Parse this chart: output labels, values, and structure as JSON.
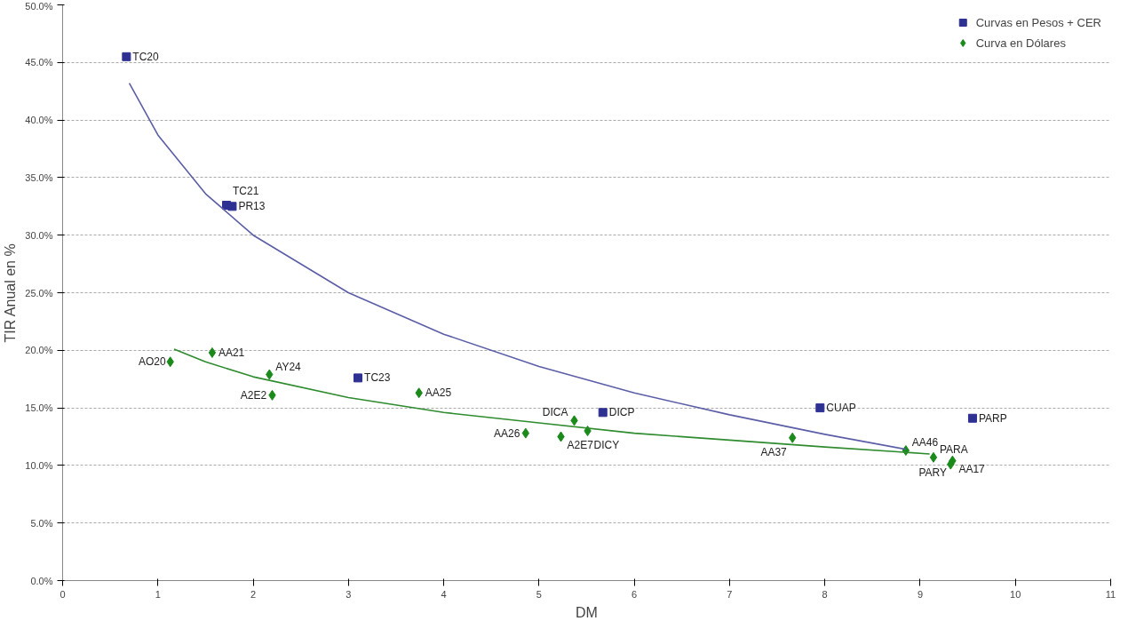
{
  "chart_data": {
    "type": "scatter",
    "xlabel": "DM",
    "ylabel": "TIR Anual en %",
    "xlim": [
      0,
      11
    ],
    "xticks": [
      0,
      1,
      2,
      3,
      4,
      5,
      6,
      7,
      8,
      9,
      10,
      11
    ],
    "ylim": [
      0,
      50
    ],
    "yticks": [
      {
        "value": 0,
        "label": "0.0%"
      },
      {
        "value": 5,
        "label": "5.0%"
      },
      {
        "value": 10,
        "label": "10.0%"
      },
      {
        "value": 15,
        "label": "15.0%"
      },
      {
        "value": 20,
        "label": "20.0%"
      },
      {
        "value": 25,
        "label": "25.0%"
      },
      {
        "value": 30,
        "label": "30.0%"
      },
      {
        "value": 35,
        "label": "35.0%"
      },
      {
        "value": 40,
        "label": "40.0%"
      },
      {
        "value": 45,
        "label": "45.0%"
      },
      {
        "value": 50,
        "label": "50.0%"
      }
    ],
    "grid": "y",
    "legend": "top right",
    "series": [
      {
        "name": "Curvas en Pesos + CER",
        "color": "#2e3192",
        "marker": "square",
        "x": [
          0.67,
          1.72,
          1.78,
          3.1,
          5.67,
          7.95,
          9.55
        ],
        "values": [
          45.5,
          32.6,
          32.5,
          17.6,
          14.6,
          15.0,
          14.1
        ],
        "value_labels": [
          "TC20",
          "TC21",
          "PR13",
          "TC23",
          "DICP",
          "CUAP",
          "PARP"
        ]
      },
      {
        "name": "Curva en Dólares",
        "color": "#1a8a1a",
        "marker": "diamond",
        "x": [
          1.13,
          1.57,
          2.17,
          2.2,
          3.74,
          4.86,
          5.23,
          5.37,
          5.51,
          7.66,
          8.85,
          9.14,
          9.34,
          9.32
        ],
        "values": [
          19.0,
          19.8,
          17.9,
          16.1,
          16.3,
          12.8,
          12.5,
          13.9,
          13.0,
          12.4,
          11.3,
          10.7,
          10.4,
          10.1
        ],
        "value_labels": [
          "AO20",
          "AA21",
          "AY24",
          "A2E2",
          "AA25",
          "AA26",
          "A2E7",
          "DICA",
          "DICY",
          "AA37",
          "AA46",
          "PARA",
          "AA17",
          "PARY"
        ]
      },
      {
        "type": "line",
        "color": "#5b5ea6",
        "x": [
          0.7,
          1,
          1.5,
          2,
          3,
          4,
          5,
          6,
          7,
          8,
          8.85
        ],
        "values": [
          43.2,
          38.7,
          33.6,
          30.0,
          25.0,
          21.4,
          18.6,
          16.3,
          14.4,
          12.7,
          11.4
        ]
      },
      {
        "type": "line",
        "color": "#2e8b2e",
        "x": [
          1.17,
          1.5,
          2,
          3,
          4,
          5,
          6,
          7,
          8,
          9.1
        ],
        "values": [
          20.1,
          19.0,
          17.7,
          15.9,
          14.6,
          13.7,
          12.8,
          12.2,
          11.6,
          11.0
        ]
      }
    ]
  }
}
